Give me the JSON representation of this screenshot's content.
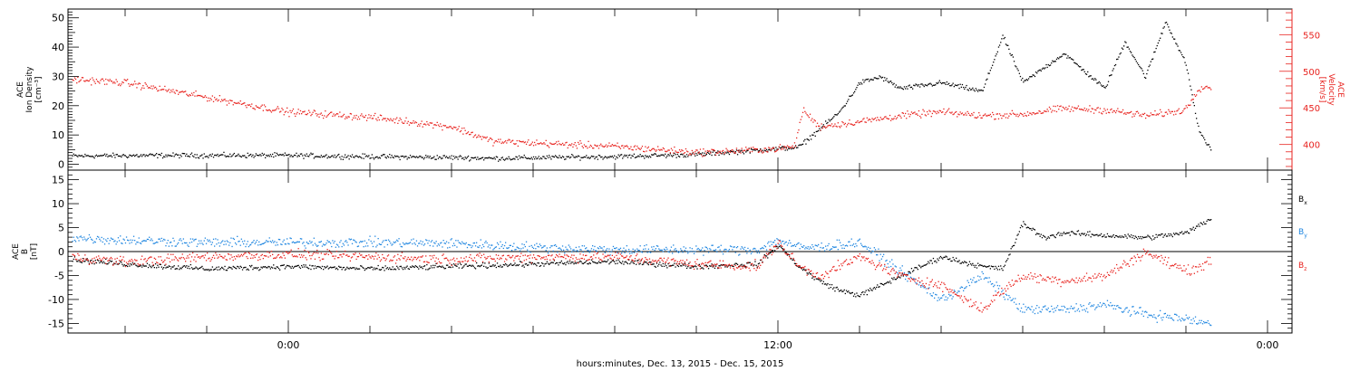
{
  "colors": {
    "black": "#000000",
    "red": "#e8231f",
    "blue": "#1f86e0"
  },
  "time_axis": {
    "tick_labels": [
      {
        "t": 0,
        "label": "0:00"
      },
      {
        "t": 12,
        "label": "12:00"
      },
      {
        "t": 24,
        "label": "0:00"
      }
    ],
    "title": "hours:minutes, Dec. 13, 2015 - Dec. 15, 2015",
    "range": [
      -5.4,
      24.6
    ],
    "minor_step": 2
  },
  "chart_data": [
    {
      "type": "scatter",
      "panel": "top",
      "left_axis_label": [
        "ACE",
        "Ion Density",
        "[cm⁻³]"
      ],
      "right_axis_label": [
        "ACE",
        "Velocity",
        "[km/s]"
      ],
      "left_ylim": [
        -2,
        53
      ],
      "right_ylim": [
        365,
        585
      ],
      "left_ticks": [
        0,
        10,
        20,
        30,
        40,
        50
      ],
      "right_ticks": [
        400,
        450,
        500,
        550
      ],
      "series": [
        {
          "color": "black",
          "axis": "left",
          "anchors": [
            [
              -5.4,
              3
            ],
            [
              -3,
              3.2
            ],
            [
              0,
              3.2
            ],
            [
              2,
              2.8
            ],
            [
              4,
              2.5
            ],
            [
              5,
              2.2
            ],
            [
              8,
              2.8
            ],
            [
              10,
              3.5
            ],
            [
              11,
              4.5
            ],
            [
              12,
              5.5
            ],
            [
              12.5,
              6
            ],
            [
              13,
              12
            ],
            [
              13.5,
              18
            ],
            [
              14,
              28
            ],
            [
              14.5,
              30
            ],
            [
              15,
              26
            ],
            [
              16,
              28
            ],
            [
              17,
              25
            ],
            [
              17.5,
              44
            ],
            [
              18,
              28
            ],
            [
              19,
              38
            ],
            [
              20,
              26
            ],
            [
              20.5,
              42
            ],
            [
              21,
              30
            ],
            [
              21.5,
              49
            ],
            [
              22,
              34
            ],
            [
              22.3,
              12
            ],
            [
              22.6,
              5
            ]
          ],
          "noise": 1.2
        },
        {
          "color": "red",
          "axis": "right",
          "anchors": [
            [
              -5.4,
              490
            ],
            [
              -4,
              485
            ],
            [
              -2,
              465
            ],
            [
              0,
              445
            ],
            [
              2,
              438
            ],
            [
              4,
              425
            ],
            [
              5,
              405
            ],
            [
              8,
              398
            ],
            [
              10,
              390
            ],
            [
              11,
              392
            ],
            [
              12,
              395
            ],
            [
              12.4,
              398
            ],
            [
              12.6,
              448
            ],
            [
              13,
              425
            ],
            [
              14,
              432
            ],
            [
              15,
              440
            ],
            [
              16,
              445
            ],
            [
              17,
              440
            ],
            [
              18,
              442
            ],
            [
              19,
              450
            ],
            [
              20,
              448
            ],
            [
              21,
              440
            ],
            [
              21.8,
              446
            ],
            [
              22,
              450
            ],
            [
              22.3,
              478
            ],
            [
              22.6,
              480
            ]
          ],
          "noise": 7
        }
      ]
    },
    {
      "type": "scatter",
      "panel": "bottom",
      "axis_label": [
        "ACE",
        "B",
        "[nT]"
      ],
      "ylim": [
        -17,
        17
      ],
      "ticks": [
        -15,
        -10,
        -5,
        0,
        5,
        10,
        15
      ],
      "zero_line": true,
      "legend": [
        {
          "label": "B",
          "sub": "x",
          "color": "black"
        },
        {
          "label": "B",
          "sub": "y",
          "color": "blue"
        },
        {
          "label": "B",
          "sub": "z",
          "color": "red"
        }
      ],
      "series": [
        {
          "name": "Bx",
          "color": "black",
          "anchors": [
            [
              -5.4,
              -1.5
            ],
            [
              -4,
              -2.5
            ],
            [
              -2,
              -3.5
            ],
            [
              0,
              -3
            ],
            [
              2,
              -3.5
            ],
            [
              4,
              -3
            ],
            [
              6,
              -2.5
            ],
            [
              8,
              -2
            ],
            [
              10,
              -3
            ],
            [
              11.5,
              -2.5
            ],
            [
              12,
              1.5
            ],
            [
              12.5,
              -3
            ],
            [
              13,
              -6
            ],
            [
              13.5,
              -8
            ],
            [
              14,
              -9
            ],
            [
              15,
              -5
            ],
            [
              16,
              -1
            ],
            [
              17,
              -3
            ],
            [
              17.5,
              -3.5
            ],
            [
              18,
              6
            ],
            [
              18.5,
              3
            ],
            [
              19,
              4
            ],
            [
              20,
              3.5
            ],
            [
              21,
              3
            ],
            [
              22,
              4
            ],
            [
              22.6,
              7
            ]
          ],
          "noise": 0.8
        },
        {
          "name": "By",
          "color": "blue",
          "anchors": [
            [
              -5.4,
              3
            ],
            [
              -4,
              2.5
            ],
            [
              -2,
              2
            ],
            [
              0,
              2
            ],
            [
              2,
              2
            ],
            [
              4,
              1.8
            ],
            [
              6,
              1
            ],
            [
              8,
              0.5
            ],
            [
              10,
              0.5
            ],
            [
              11.5,
              0.5
            ],
            [
              12,
              2.5
            ],
            [
              12.5,
              1
            ],
            [
              13,
              1
            ],
            [
              14,
              2
            ],
            [
              15,
              -4
            ],
            [
              16,
              -10
            ],
            [
              17,
              -5
            ],
            [
              18,
              -12
            ],
            [
              19,
              -12
            ],
            [
              20,
              -11
            ],
            [
              21,
              -13
            ],
            [
              22,
              -14
            ],
            [
              22.6,
              -15
            ]
          ],
          "noise": 1.5
        },
        {
          "name": "Bz",
          "color": "red",
          "anchors": [
            [
              -5.4,
              -1
            ],
            [
              -4,
              -2
            ],
            [
              -2,
              -1
            ],
            [
              0,
              -0.5
            ],
            [
              2,
              -1
            ],
            [
              4,
              -1.5
            ],
            [
              6,
              -1
            ],
            [
              8,
              -1
            ],
            [
              10,
              -2.5
            ],
            [
              11.5,
              -3
            ],
            [
              12,
              2
            ],
            [
              12.5,
              -3
            ],
            [
              13,
              -5
            ],
            [
              14,
              -1
            ],
            [
              15,
              -5
            ],
            [
              16,
              -7
            ],
            [
              17,
              -12
            ],
            [
              17.5,
              -8
            ],
            [
              18,
              -5
            ],
            [
              19,
              -6
            ],
            [
              20,
              -5
            ],
            [
              21,
              0
            ],
            [
              22,
              -4
            ],
            [
              22.6,
              -2
            ]
          ],
          "noise": 1.5
        }
      ]
    }
  ]
}
